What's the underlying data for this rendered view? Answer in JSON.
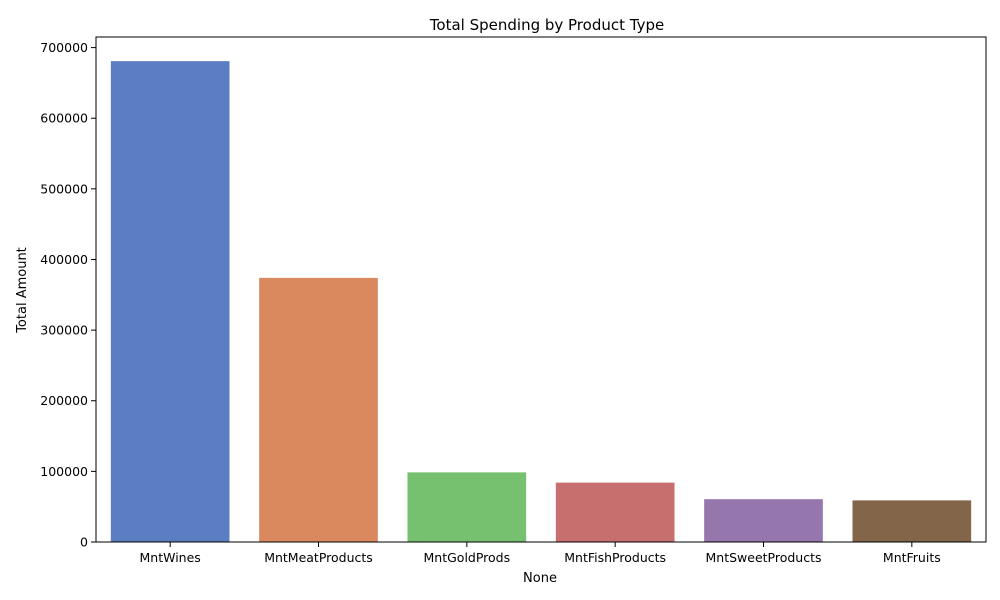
{
  "chart_data": {
    "type": "bar",
    "title": "Total Spending by Product Type",
    "xlabel": "None",
    "ylabel": "Total Amount",
    "categories": [
      "MntWines",
      "MntMeatProducts",
      "MntGoldProds",
      "MntFishProducts",
      "MntSweetProducts",
      "MntFruits"
    ],
    "values": [
      680816,
      373968,
      98609,
      84057,
      60621,
      58917
    ],
    "colors": [
      "#5b7ec2",
      "#d9895d",
      "#76c16f",
      "#c76e6e",
      "#9576ad",
      "#83654a"
    ],
    "ylim": [
      0,
      715000
    ],
    "yticks": [
      0,
      100000,
      200000,
      300000,
      400000,
      500000,
      600000,
      700000
    ],
    "ytick_labels": [
      "0",
      "100000",
      "200000",
      "300000",
      "400000",
      "500000",
      "600000",
      "700000"
    ],
    "grid": false,
    "legend": "none"
  }
}
